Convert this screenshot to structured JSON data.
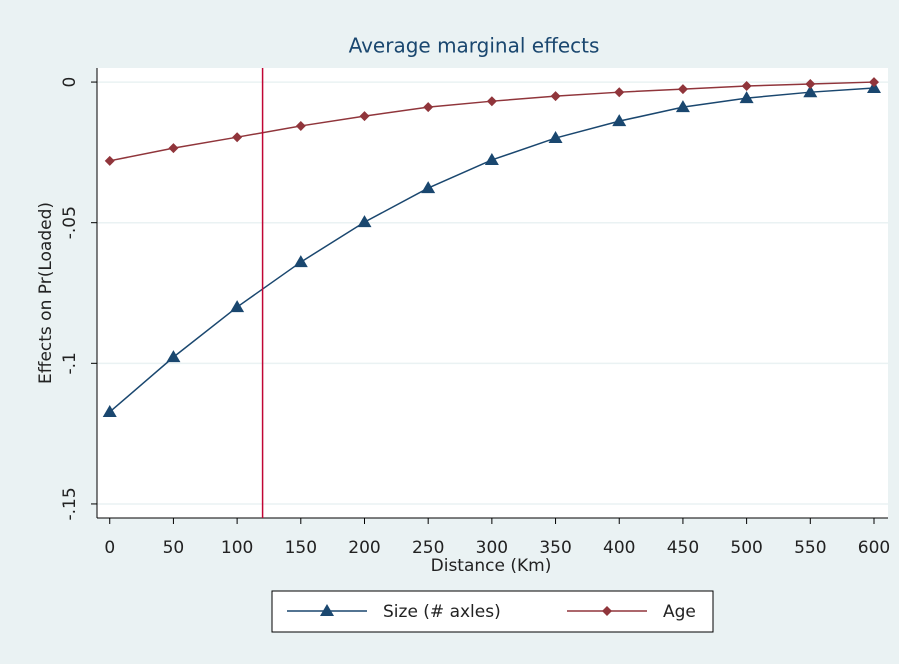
{
  "chart_data": {
    "type": "line",
    "title": "Average marginal effects",
    "x_label": "Distance (Km)",
    "y_label": "Effects on Pr(Loaded)",
    "x": [
      0,
      50,
      100,
      150,
      200,
      250,
      300,
      350,
      400,
      450,
      500,
      550,
      600
    ],
    "series": [
      {
        "name": "Size (# axles)",
        "color": "#1a476f",
        "marker": "triangle",
        "values": [
          -0.1173,
          -0.0978,
          -0.08,
          -0.064,
          -0.0498,
          -0.0377,
          -0.0277,
          -0.0199,
          -0.0139,
          -0.0089,
          -0.0057,
          -0.0036,
          -0.0021
        ]
      },
      {
        "name": "Age",
        "color": "#90353b",
        "marker": "diamond",
        "values": [
          -0.028,
          -0.0235,
          -0.0196,
          -0.0156,
          -0.0121,
          -0.0089,
          -0.0068,
          -0.005,
          -0.0036,
          -0.0025,
          -0.0014,
          -0.0007,
          0
        ]
      }
    ],
    "xline": 120,
    "xline_color": "#c10534",
    "xlim": [
      -10,
      611
    ],
    "xticks": [
      0,
      50,
      100,
      150,
      200,
      250,
      300,
      350,
      400,
      450,
      500,
      550,
      600
    ],
    "ylim": [
      -0.155,
      0.005
    ],
    "yticks": [
      0,
      {
        "value": -0.05,
        "label": "-.05"
      },
      {
        "value": -0.1,
        "label": "-.1"
      },
      {
        "value": -0.15,
        "label": "-.15"
      }
    ],
    "grid": true
  }
}
